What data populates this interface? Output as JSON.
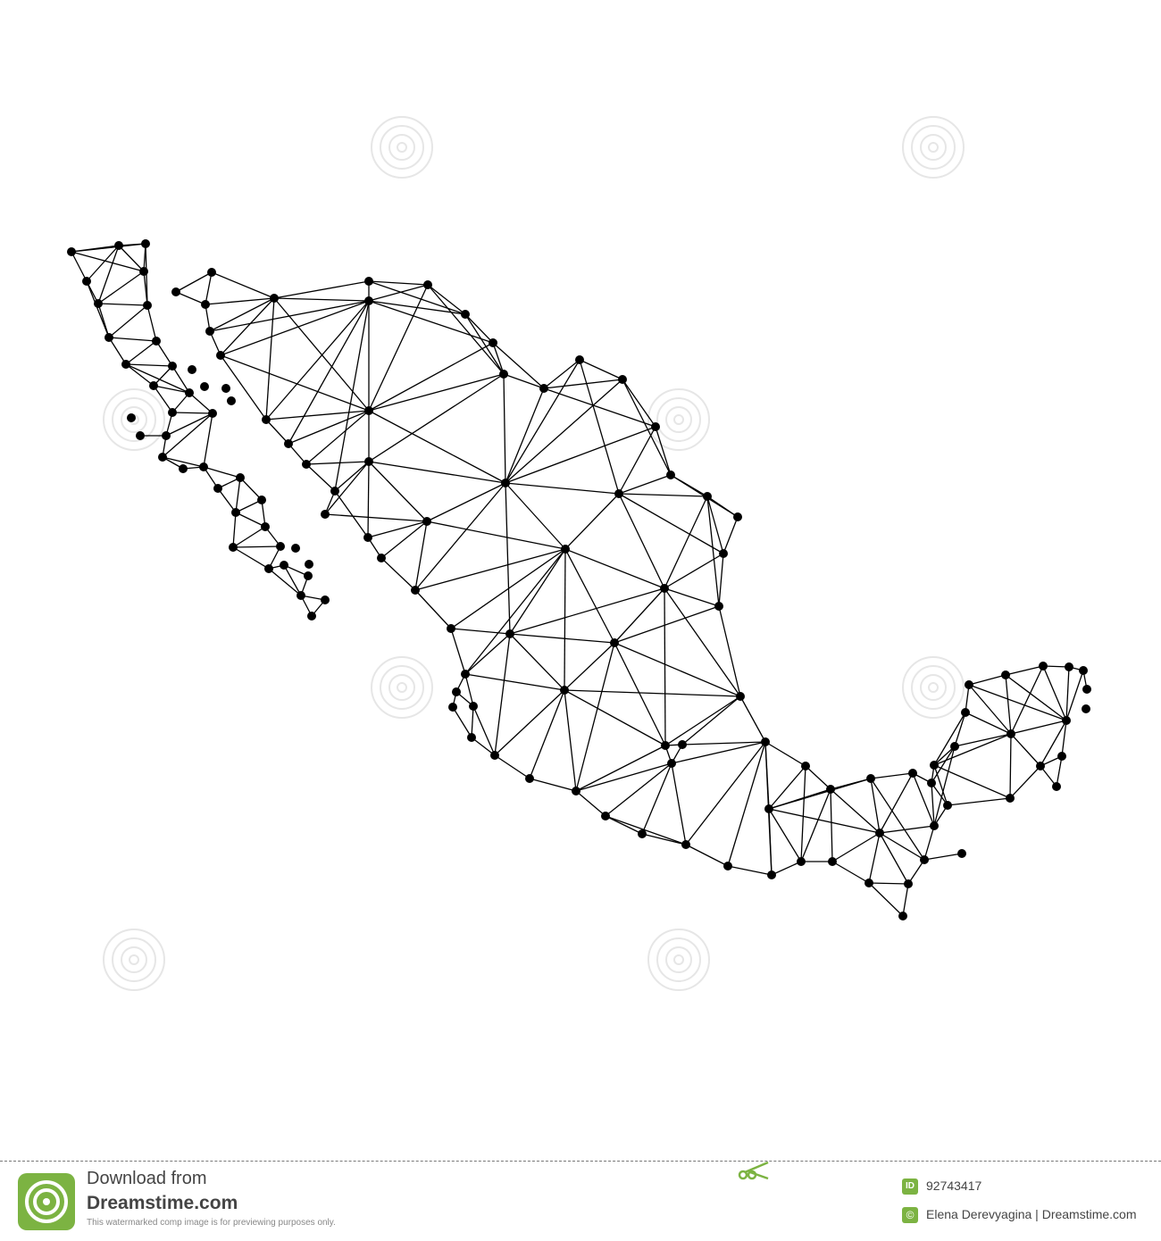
{
  "map": {
    "subject": "Mexico polygonal network map",
    "line_color": "#000000",
    "dot_color": "#000000",
    "background": "#ffffff"
  },
  "footer": {
    "download_label": "Download from",
    "brand": "Dreamstime.com",
    "note": "This watermarked comp image is for previewing purposes only.",
    "id_badge": "ID",
    "image_id": "92743417",
    "copyright_symbol": "©",
    "credit": "Elena Derevyagina | Dreamstime.com",
    "accent_color": "#7cb342",
    "icons": [
      "dreamstime-spiral-logo-icon",
      "scissors-icon"
    ]
  }
}
